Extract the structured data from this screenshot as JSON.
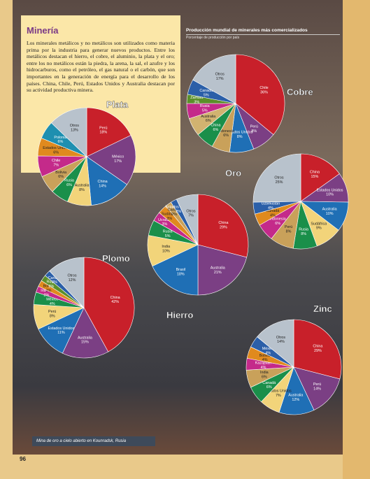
{
  "intro": {
    "title": "Minería",
    "text": "Los minerales metálicos y no metálicos son utilizados como materia prima por la industria para generar nuevos productos. Entre los metálicos destacan el hierro, el cobre, el aluminio, la plata y el oro; entre los no metálicos están la piedra, la arena, la sal, el azufre y los hidrocarburos, como el petróleo, el gas natural o el carbón, que son importantes en la generación de energía para el desarrollo de los países. China, Chile, Perú, Estados Unidos y Australia destacan por su actividad productiva minera."
  },
  "header": {
    "title": "Producción mundial de minerales más comercializados",
    "subtitle": "Porcentaje de producción por país"
  },
  "caption": "Mina de oro a cielo abierto en Kounradsk, Rusia",
  "page_number": "96",
  "chart_data": [
    {
      "type": "pie",
      "title": "Cobre",
      "categories": [
        "Chile",
        "Perú",
        "Estados Unidos",
        "Indonesia",
        "China",
        "Australia",
        "Rusia",
        "Zambia",
        "Canadá",
        "Otros"
      ],
      "values": [
        36,
        8,
        8,
        6,
        6,
        6,
        5,
        3,
        5,
        17
      ],
      "value_labels": [
        "36%",
        "8%",
        "8%",
        "6%",
        "6%",
        "6%",
        "5%",
        "3%",
        "5%",
        "17%"
      ],
      "colors": [
        "#c8202a",
        "#7b3f84",
        "#1f6fb5",
        "#c9a15a",
        "#1a8f4a",
        "#d1b370",
        "#c42a8a",
        "#5b8f2a",
        "#2b5fa8",
        "#b8c2cc"
      ]
    },
    {
      "type": "pie",
      "title": "Plata",
      "categories": [
        "Perú",
        "México",
        "China",
        "Australia",
        "Rusia",
        "Bolivia",
        "Chile",
        "Estados Unidos",
        "Polonia",
        "Otros"
      ],
      "values": [
        18,
        17,
        14,
        8,
        6,
        6,
        7,
        6,
        6,
        13
      ],
      "value_labels": [
        "18%",
        "17%",
        "14%",
        "8%",
        "6%",
        "6%",
        "7%",
        "6%",
        "6%",
        "13%"
      ],
      "colors": [
        "#c8202a",
        "#7b3f84",
        "#1f6fb5",
        "#f2d47a",
        "#1a8f4a",
        "#c9a15a",
        "#c42a8a",
        "#e08a1e",
        "#1e8fb0",
        "#b8c2cc"
      ]
    },
    {
      "type": "pie",
      "title": "Oro",
      "categories": [
        "China",
        "Estados Unidos",
        "Australia",
        "Sudáfrica",
        "Rusia",
        "Perú",
        "Indonesia",
        "Canadá",
        "Uzbekistán",
        "Otros"
      ],
      "values": [
        15,
        10,
        10,
        9,
        8,
        8,
        6,
        4,
        4,
        25
      ],
      "value_labels": [
        "15%",
        "10%",
        "10%",
        "9%",
        "8%",
        "8%",
        "6%",
        "4%",
        "4%",
        "25%"
      ],
      "colors": [
        "#c8202a",
        "#7b3f84",
        "#1f6fb5",
        "#f2d47a",
        "#1a8f4a",
        "#c9a15a",
        "#c42a8a",
        "#e08a1e",
        "#2b5fa8",
        "#b8c2cc"
      ]
    },
    {
      "type": "pie",
      "title": "Hierro",
      "categories": [
        "China",
        "Australia",
        "Brasil",
        "India",
        "Rusia",
        "Ucrania",
        "Sudáfrica",
        "Canadá",
        "Estados Unidos",
        "Otros"
      ],
      "values": [
        29,
        21,
        18,
        10,
        5,
        3,
        3,
        2,
        2,
        7
      ],
      "value_labels": [
        "29%",
        "21%",
        "18%",
        "10%",
        "5%",
        "3%",
        "3%",
        "2%",
        "2%",
        "7%"
      ],
      "colors": [
        "#c8202a",
        "#7b3f84",
        "#1f6fb5",
        "#f2d47a",
        "#1a8f4a",
        "#c42a8a",
        "#e08a1e",
        "#c9a15a",
        "#2b5fa8",
        "#b8c2cc"
      ]
    },
    {
      "type": "pie",
      "title": "Plomo",
      "categories": [
        "China",
        "Australia",
        "Estados Unidos",
        "Perú",
        "México",
        "Irlanda",
        "Bolivia",
        "Rusia",
        "Canadá",
        "Otros"
      ],
      "values": [
        42,
        15,
        11,
        8,
        4,
        2,
        2,
        2,
        2,
        12
      ],
      "value_labels": [
        "42%",
        "15%",
        "11%",
        "8%",
        "4%",
        "2%",
        "2%",
        "2%",
        "2%",
        "12%"
      ],
      "colors": [
        "#c8202a",
        "#7b3f84",
        "#1f6fb5",
        "#f2d47a",
        "#1a8f4a",
        "#c42a8a",
        "#e08a1e",
        "#5b8f2a",
        "#2b5fa8",
        "#b8c2cc"
      ]
    },
    {
      "type": "pie",
      "title": "Zinc",
      "categories": [
        "China",
        "Perú",
        "Australia",
        "Estados Unidos",
        "Canadá",
        "India",
        "Kazajstán",
        "Bolivia",
        "México",
        "Otros"
      ],
      "values": [
        29,
        14,
        12,
        7,
        6,
        6,
        4,
        4,
        4,
        14
      ],
      "value_labels": [
        "29%",
        "14%",
        "12%",
        "7%",
        "6%",
        "6%",
        "4%",
        "4%",
        "4%",
        "14%"
      ],
      "colors": [
        "#c8202a",
        "#7b3f84",
        "#1f6fb5",
        "#f2d47a",
        "#1a8f4a",
        "#c9a15a",
        "#c42a8a",
        "#e08a1e",
        "#2b5fa8",
        "#b8c2cc"
      ]
    }
  ]
}
